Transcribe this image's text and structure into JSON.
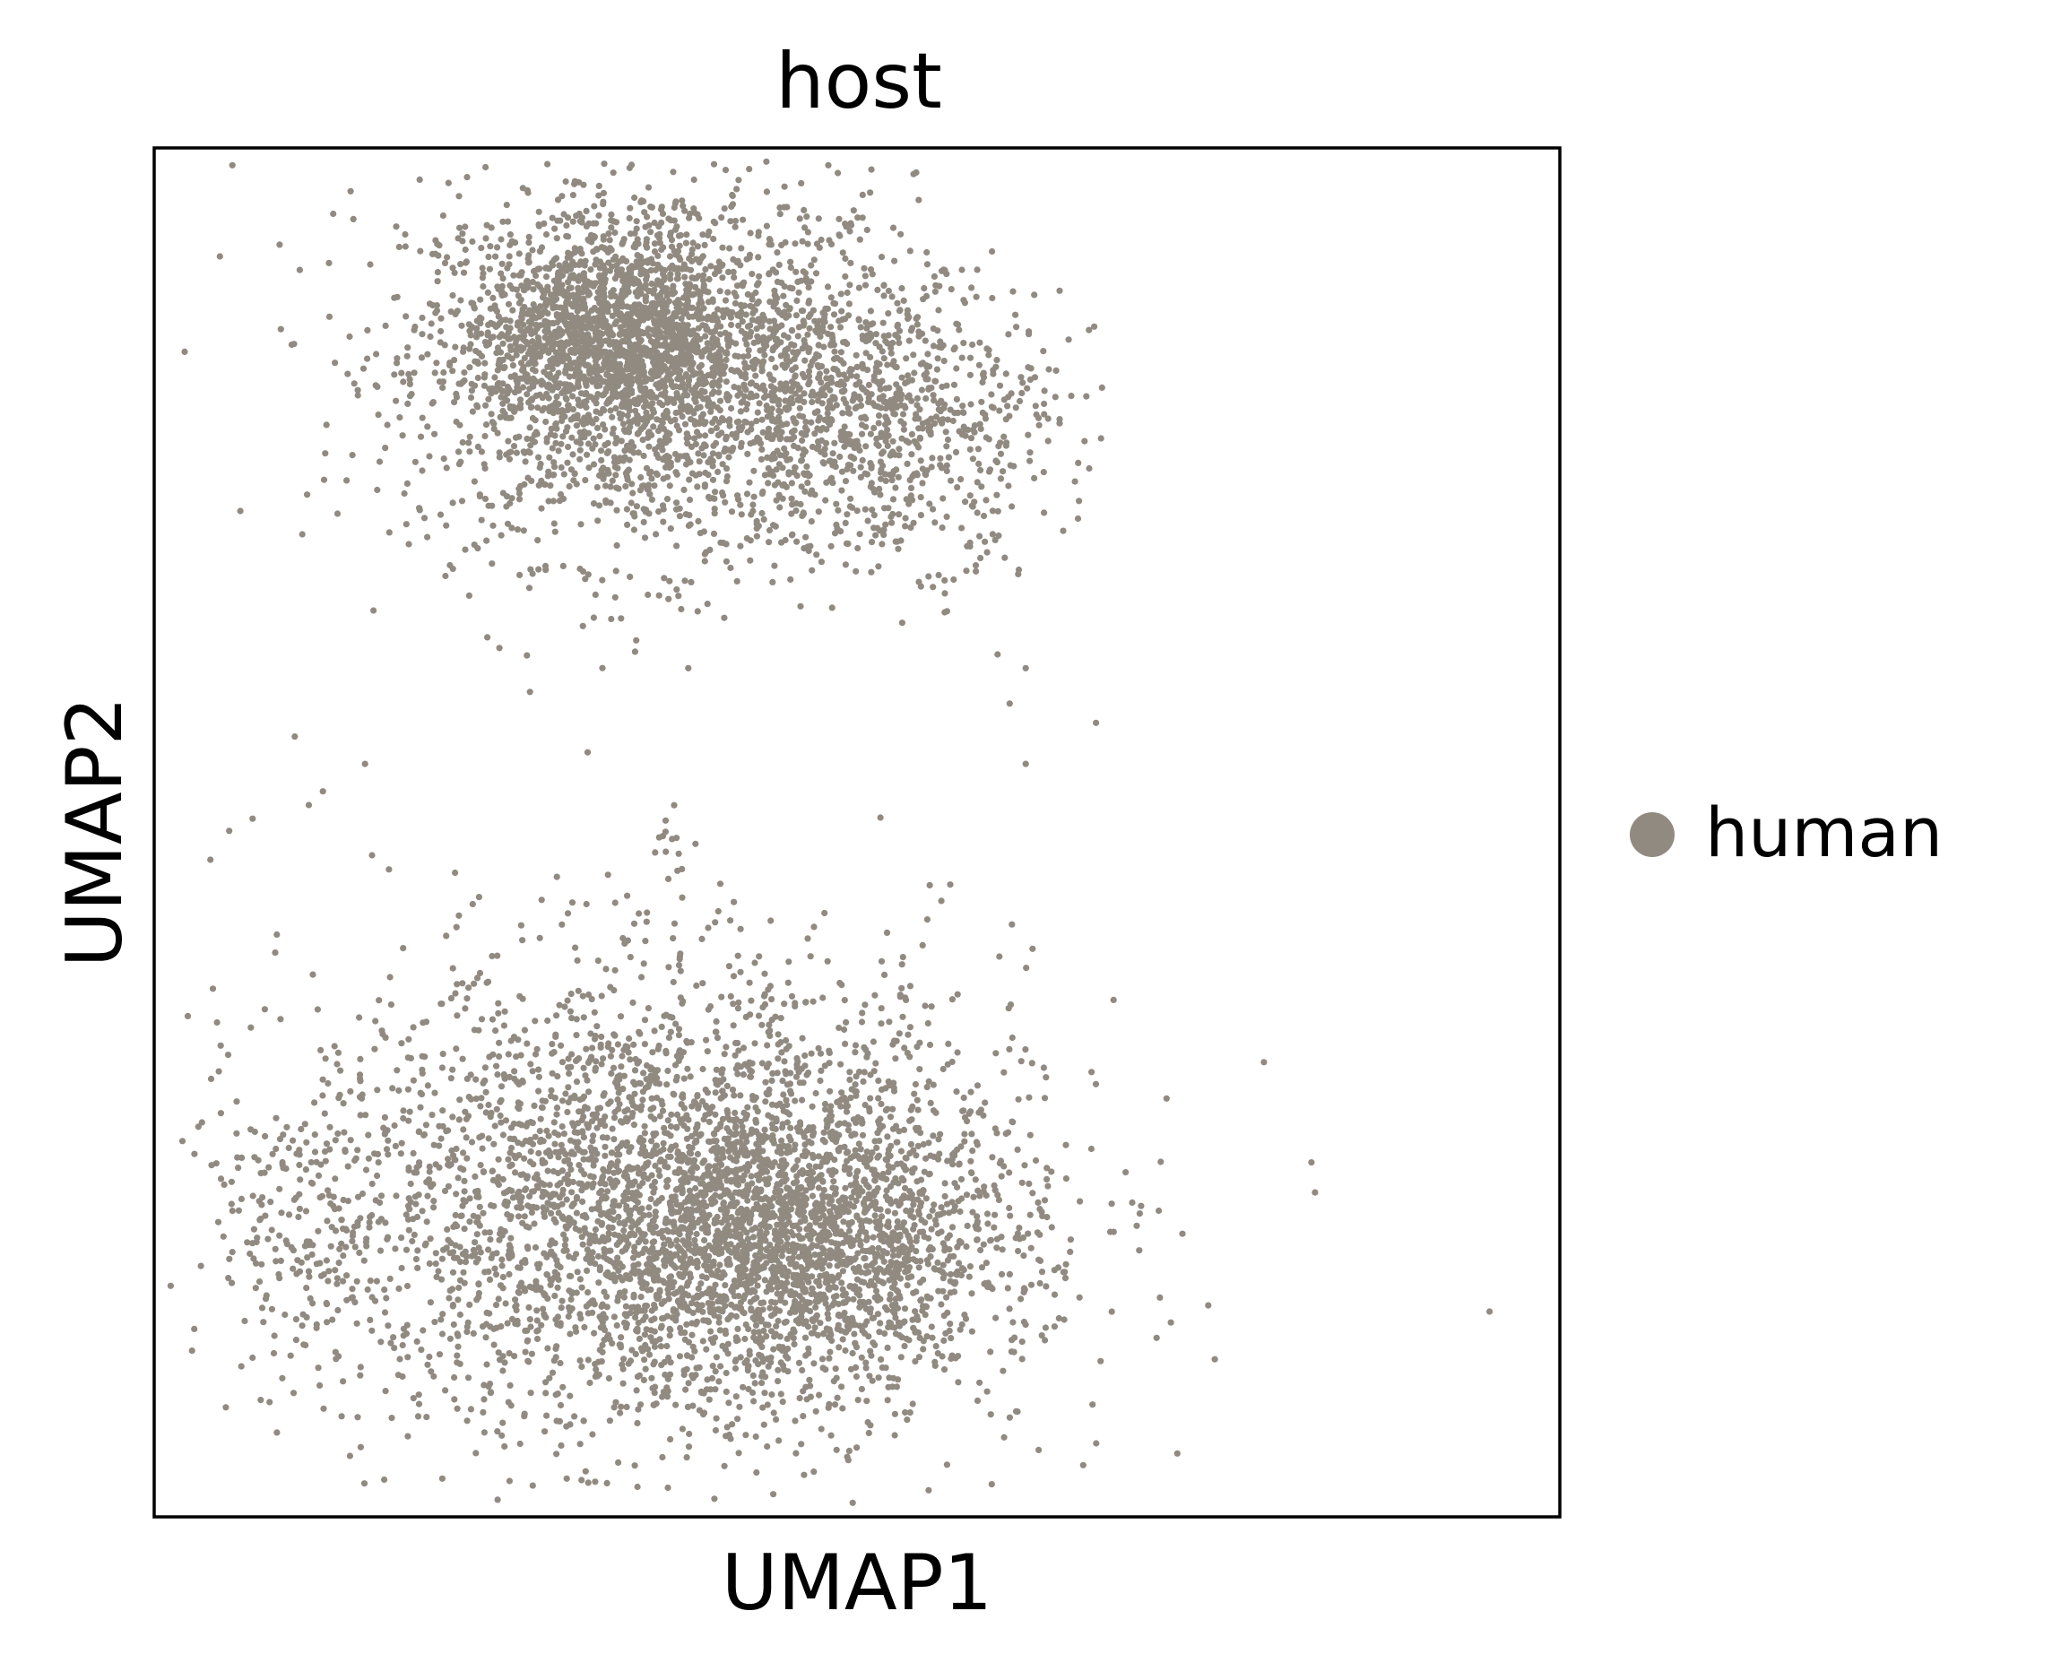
{
  "chart_data": {
    "type": "scatter",
    "title": "host",
    "xlabel": "UMAP1",
    "ylabel": "UMAP2",
    "xlim": [
      0,
      1
    ],
    "ylim": [
      0,
      1
    ],
    "xticks": [],
    "yticks": [],
    "grid": false,
    "legend": {
      "placement": "right",
      "entries": [
        "human"
      ]
    },
    "series": [
      {
        "name": "human",
        "color": "#918a81",
        "clusters": [
          {
            "cx": 0.36,
            "cy": 0.84,
            "sx": 0.09,
            "sy": 0.07,
            "n": 2200
          },
          {
            "cx": 0.32,
            "cy": 0.86,
            "sx": 0.05,
            "sy": 0.035,
            "n": 1200
          },
          {
            "cx": 0.52,
            "cy": 0.8,
            "sx": 0.06,
            "sy": 0.05,
            "n": 700
          },
          {
            "cx": 0.36,
            "cy": 0.23,
            "sx": 0.13,
            "sy": 0.085,
            "n": 3200
          },
          {
            "cx": 0.45,
            "cy": 0.2,
            "sx": 0.07,
            "sy": 0.05,
            "n": 1600
          },
          {
            "cx": 0.11,
            "cy": 0.21,
            "sx": 0.03,
            "sy": 0.04,
            "n": 120
          },
          {
            "cx": 0.37,
            "cy": 0.49,
            "sx": 0.008,
            "sy": 0.015,
            "n": 15
          }
        ],
        "outliers": [
          [
            0.1,
            0.57
          ],
          [
            0.12,
            0.53
          ],
          [
            0.11,
            0.52
          ],
          [
            0.15,
            0.55
          ],
          [
            0.07,
            0.51
          ],
          [
            0.04,
            0.48
          ],
          [
            0.67,
            0.58
          ],
          [
            0.62,
            0.55
          ],
          [
            0.95,
            0.15
          ],
          [
            0.56,
            0.45
          ],
          [
            0.38,
            0.62
          ],
          [
            0.6,
            0.63
          ],
          [
            0.62,
            0.62
          ]
        ]
      }
    ]
  }
}
